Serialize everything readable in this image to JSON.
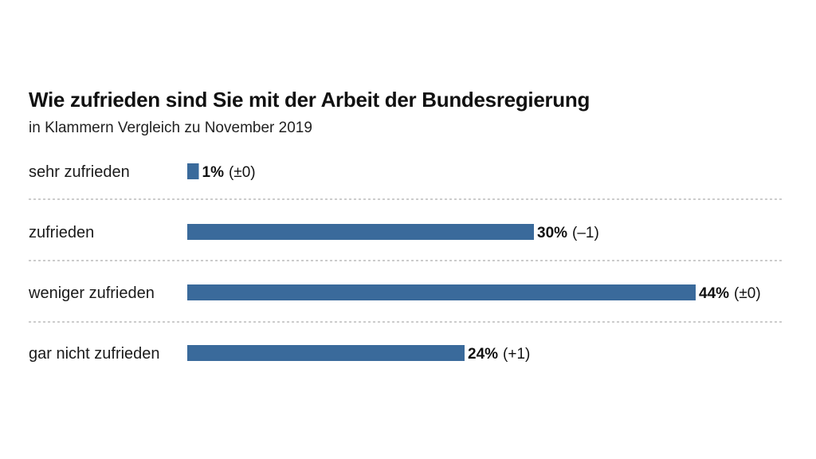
{
  "chart_data": {
    "type": "bar",
    "orientation": "horizontal",
    "title": "Wie zufrieden sind Sie mit der Arbeit der Bundesregierung",
    "subtitle": "in Klammern Vergleich zu November 2019",
    "categories": [
      "sehr zufrieden",
      "zufrieden",
      "weniger zufrieden",
      "gar nicht zufrieden"
    ],
    "values": [
      1,
      30,
      44,
      24
    ],
    "value_labels": [
      "1%",
      "30%",
      "44%",
      "24%"
    ],
    "change_labels": [
      "(±0)",
      "(–1)",
      "(±0)",
      "(+1)"
    ],
    "xlim": [
      0,
      44
    ],
    "bar_color": "#3a6a9b",
    "grid": false,
    "separators": "dashed"
  }
}
